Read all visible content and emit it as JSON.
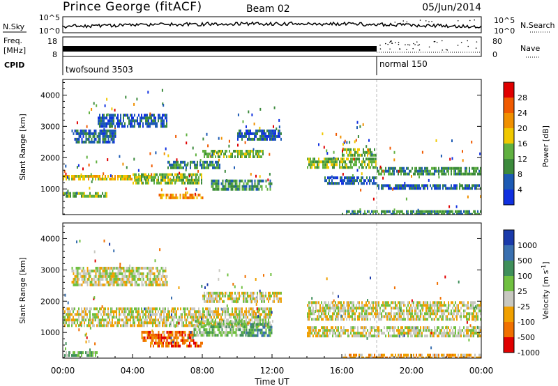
{
  "header": {
    "site": "Prince George (fitACF)",
    "beam": "Beam 02",
    "date": "05/Jun/2014"
  },
  "noise_panel": {
    "left_label": "N.Sky",
    "right_label": "N.Search",
    "left_ticks": [
      "10^5",
      "10^0"
    ],
    "right_ticks": [
      "10^5",
      "10^0"
    ]
  },
  "freq_panel": {
    "left_label_1": "Freq.",
    "left_label_2": "[MHz]",
    "left_ticks": [
      "18",
      "8"
    ],
    "right_label": "Nave",
    "right_ticks": [
      "80",
      "0"
    ]
  },
  "cpid_panel": {
    "label": "CPID",
    "programs": [
      {
        "name": "twofsound 3503",
        "start_hour": 0
      },
      {
        "name": "normal 150",
        "start_hour": 18
      }
    ]
  },
  "colors": {
    "power": [
      "#1030e0",
      "#1c5ab4",
      "#3c8a3c",
      "#60b040",
      "#f0c800",
      "#f09000",
      "#f05a00",
      "#e00000"
    ],
    "velocity": [
      "#1a3aaa",
      "#3a70b0",
      "#3f8f5a",
      "#70c040",
      "#c8c8c0",
      "#f0a000",
      "#f07000",
      "#e00000"
    ]
  },
  "chart_data": [
    {
      "type": "heatmap",
      "ylabel": "Slant Range [km]",
      "yticks": [
        1000,
        2000,
        3000,
        4000
      ],
      "ylim": [
        180,
        4500
      ],
      "xlim": [
        0,
        24
      ],
      "colorbar": {
        "label": "Power [dB]",
        "ticks": [
          "4",
          "8",
          "12",
          "16",
          "20",
          "24",
          "28"
        ],
        "range": [
          0,
          32
        ]
      },
      "bands": [
        {
          "start": 0.0,
          "end": 5.0,
          "range_from": 1300,
          "range_to": 1450,
          "intensity": 4
        },
        {
          "start": 0.0,
          "end": 2.5,
          "range_from": 750,
          "range_to": 900,
          "intensity": 3
        },
        {
          "start": 0.5,
          "end": 3.0,
          "range_from": 2500,
          "range_to": 2900,
          "intensity": 1
        },
        {
          "start": 2.0,
          "end": 6.0,
          "range_from": 3000,
          "range_to": 3400,
          "intensity": 1
        },
        {
          "start": 4.0,
          "end": 8.0,
          "range_from": 1200,
          "range_to": 1500,
          "intensity": 3
        },
        {
          "start": 5.5,
          "end": 8.0,
          "range_from": 700,
          "range_to": 850,
          "intensity": 5
        },
        {
          "start": 6.0,
          "end": 9.0,
          "range_from": 1700,
          "range_to": 1900,
          "intensity": 2
        },
        {
          "start": 8.0,
          "end": 11.5,
          "range_from": 2000,
          "range_to": 2250,
          "intensity": 3
        },
        {
          "start": 8.5,
          "end": 12.0,
          "range_from": 1000,
          "range_to": 1300,
          "intensity": 2
        },
        {
          "start": 10.0,
          "end": 12.5,
          "range_from": 2600,
          "range_to": 2900,
          "intensity": 1
        },
        {
          "start": 14.0,
          "end": 18.0,
          "range_from": 1700,
          "range_to": 2000,
          "intensity": 3
        },
        {
          "start": 16.0,
          "end": 18.0,
          "range_from": 2100,
          "range_to": 2300,
          "intensity": 3
        },
        {
          "start": 15.0,
          "end": 18.0,
          "range_from": 1200,
          "range_to": 1400,
          "intensity": 1
        },
        {
          "start": 18.0,
          "end": 24.0,
          "range_from": 1500,
          "range_to": 1700,
          "intensity": 2
        },
        {
          "start": 18.0,
          "end": 24.0,
          "range_from": 1000,
          "range_to": 1150,
          "intensity": 1
        },
        {
          "start": 16.0,
          "end": 24.0,
          "range_from": 220,
          "range_to": 320,
          "intensity": 2
        }
      ]
    },
    {
      "type": "heatmap",
      "ylabel": "Slant Range [km]",
      "xlabel": "Time UT",
      "xticks": [
        "00:00",
        "04:00",
        "08:00",
        "12:00",
        "16:00",
        "20:00",
        "00:00"
      ],
      "yticks": [
        1000,
        2000,
        3000,
        4000
      ],
      "ylim": [
        180,
        4500
      ],
      "xlim": [
        0,
        24
      ],
      "colorbar": {
        "label": "Velocity [m s",
        "label_sup": "-1",
        "label_end": "]",
        "ticks": [
          "1000",
          "500",
          "100",
          "25",
          "-25",
          "-100",
          "-500",
          "-1000"
        ]
      },
      "bands": [
        {
          "start": 0.0,
          "end": 12.0,
          "range_from": 1200,
          "range_to": 1800,
          "intensity": 4
        },
        {
          "start": 0.5,
          "end": 6.0,
          "range_from": 2500,
          "range_to": 3100,
          "intensity": 4
        },
        {
          "start": 4.5,
          "end": 7.5,
          "range_from": 700,
          "range_to": 1050,
          "intensity": 6
        },
        {
          "start": 5.0,
          "end": 8.0,
          "range_from": 550,
          "range_to": 700,
          "intensity": 6
        },
        {
          "start": 7.5,
          "end": 10.5,
          "range_from": 900,
          "range_to": 1400,
          "intensity": 3
        },
        {
          "start": 10.5,
          "end": 12.0,
          "range_from": 900,
          "range_to": 1300,
          "intensity": 2
        },
        {
          "start": 8.0,
          "end": 12.5,
          "range_from": 2000,
          "range_to": 2300,
          "intensity": 4
        },
        {
          "start": 14.0,
          "end": 24.0,
          "range_from": 1400,
          "range_to": 2000,
          "intensity": 4
        },
        {
          "start": 14.0,
          "end": 24.0,
          "range_from": 900,
          "range_to": 1200,
          "intensity": 4
        },
        {
          "start": 0.0,
          "end": 2.0,
          "range_from": 250,
          "range_to": 400,
          "intensity": 3
        },
        {
          "start": 16.0,
          "end": 24.0,
          "range_from": 220,
          "range_to": 320,
          "intensity": 5
        }
      ]
    }
  ]
}
